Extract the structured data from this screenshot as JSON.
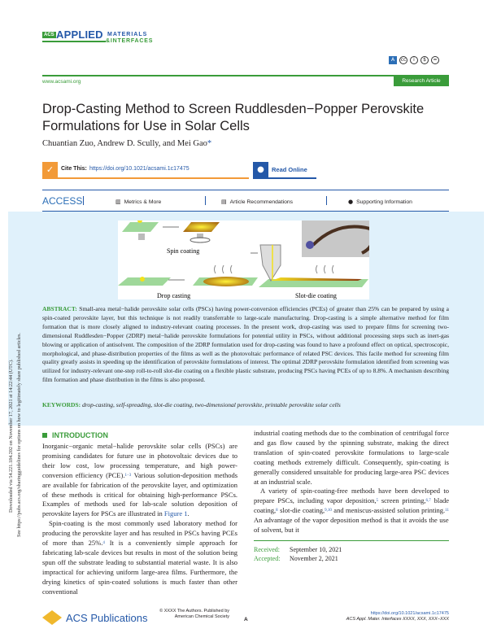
{
  "journal": {
    "logo_acs": "ACS",
    "logo_applied": "APPLIED",
    "logo_materials": "MATERIALS",
    "logo_interfaces": "&INTERFACES",
    "website": "www.acsami.org",
    "article_type": "Research Article"
  },
  "license_icons": [
    "access-choice-icon",
    "cc-icon",
    "by-icon",
    "nc-icon",
    "nd-icon"
  ],
  "article": {
    "title": "Drop-Casting Method to Screen Ruddlesden−Popper Perovskite Formulations for Use in Solar Cells",
    "authors": "Chuantian Zuo, Andrew D. Scully, and Mei Gao",
    "corresponding_mark": "*",
    "cite_label": "Cite This:",
    "doi_link": "https://doi.org/10.1021/acsami.1c17475",
    "read_online": "Read Online"
  },
  "access_bar": {
    "access": "ACCESS",
    "metrics": "Metrics & More",
    "recommendations": "Article Recommendations",
    "supporting": "Supporting Information"
  },
  "figure": {
    "labels": {
      "spin": "Spin coating",
      "drop": "Drop casting",
      "slot": "Slot-die coating"
    }
  },
  "abstract": {
    "heading": "ABSTRACT:",
    "text": "Small-area metal−halide perovskite solar cells (PSCs) having power-conversion efficiencies (PCEs) of greater than 25% can be prepared by using a spin-coated perovskite layer, but this technique is not readily transferrable to large-scale manufacturing. Drop-casting is a simple alternative method for film formation that is more closely aligned to industry-relevant coating processes. In the present work, drop-casting was used to prepare films for screening two-dimensional Ruddlesden−Popper (2DRP) metal−halide perovskite formulations for potential utility in PSCs, without additional processing steps such as inert-gas blowing or application of antisolvent. The composition of the 2DRP formulation used for drop-casting was found to have a profound effect on optical, spectroscopic, morphological, and phase-distribution properties of the films as well as the photovoltaic performance of related PSC devices. This facile method for screening film quality greatly assists in speeding up the identification of perovskite formulations of interest. The optimal 2DRP perovskite formulation identified from screening was utilized for industry-relevant one-step roll-to-roll slot-die coating on a flexible plastic substrate, producing PSCs having PCEs of up to 8.8%. A mechanism describing film formation and phase distribution in the films is also proposed."
  },
  "keywords": {
    "heading": "KEYWORDS:",
    "text": "drop-casting, self-spreading, slot-die coating, two-dimensional perovskite, printable perovskite solar cells"
  },
  "side_note": {
    "line1": "Downloaded via 54.221.184.202 on November 17, 2021 at 14:22:44 (UTC).",
    "line2": "See https://pubs.acs.org/sharingguidelines for options on how to legitimately share published articles."
  },
  "introduction": {
    "heading": "INTRODUCTION",
    "p1a": "Inorganic−organic metal−halide perovskite solar cells (PSCs) are promising candidates for future use in photovoltaic devices due to their low cost, low processing temperature, and high power-conversion efficiency (PCE).",
    "p1_ref": "1−3",
    "p1b": " Various solution-deposition methods are available for fabrication of the perovskite layer, and optimization of these methods is critical for obtaining high-performance PSCs. Examples of methods used for lab-scale solution deposition of perovskite layers for PSCs are illustrated in ",
    "p1_fig": "Figure 1",
    "p2a": "Spin-coating is the most commonly used laboratory method for producing the perovskite layer and has resulted in PSCs having PCEs of more than 25%.",
    "p2_ref": "4",
    "p2b": " It is a conveniently simple approach for fabricating lab-scale devices but results in most of the solution being spun off the substrate leading to substantial material waste. It is also impractical for achieving uniform large-area films. Furthermore, the drying kinetics of spin-coated solutions is much faster than other conventional",
    "p3": "industrial coating methods due to the combination of centrifugal force and gas flow caused by the spinning substrate, making the direct translation of spin-coated perovskite formulations to large-scale coating methods extremely difficult. Consequently, spin-coating is generally considered unsuitable for producing large-area PSC devices at an industrial scale.",
    "p4a": "A variety of spin-coating-free methods have been developed to prepare PSCs, including vapor deposition,",
    "r5": "5",
    "p4b": " screen printing,",
    "r67": "6,7",
    "p4c": " blade coating,",
    "r8": "8",
    "p4d": " slot-die coating,",
    "r910": "9,10",
    "p4e": " and meniscus-assisted solution printing.",
    "r11": "11",
    "p4f": " An advantage of the vapor deposition method is that it avoids the use of solvent, but it"
  },
  "dates": {
    "received_label": "Received:",
    "received": "September 10, 2021",
    "accepted_label": "Accepted:",
    "accepted": "November 2, 2021"
  },
  "footer": {
    "publisher": "ACS Publications",
    "copyright_line1": "© XXXX The Authors. Published by",
    "copyright_line2": "American Chemical Society",
    "page": "A",
    "doi": "https://doi.org/10.1021/acsami.1c17475",
    "citation": "ACS Appl. Mater. Interfaces XXXX, XXX, XXX−XXX"
  },
  "colors": {
    "green": "#3a9c3a",
    "blue": "#2458a8",
    "orange": "#f29a38",
    "panel": "#e0f1fb"
  }
}
